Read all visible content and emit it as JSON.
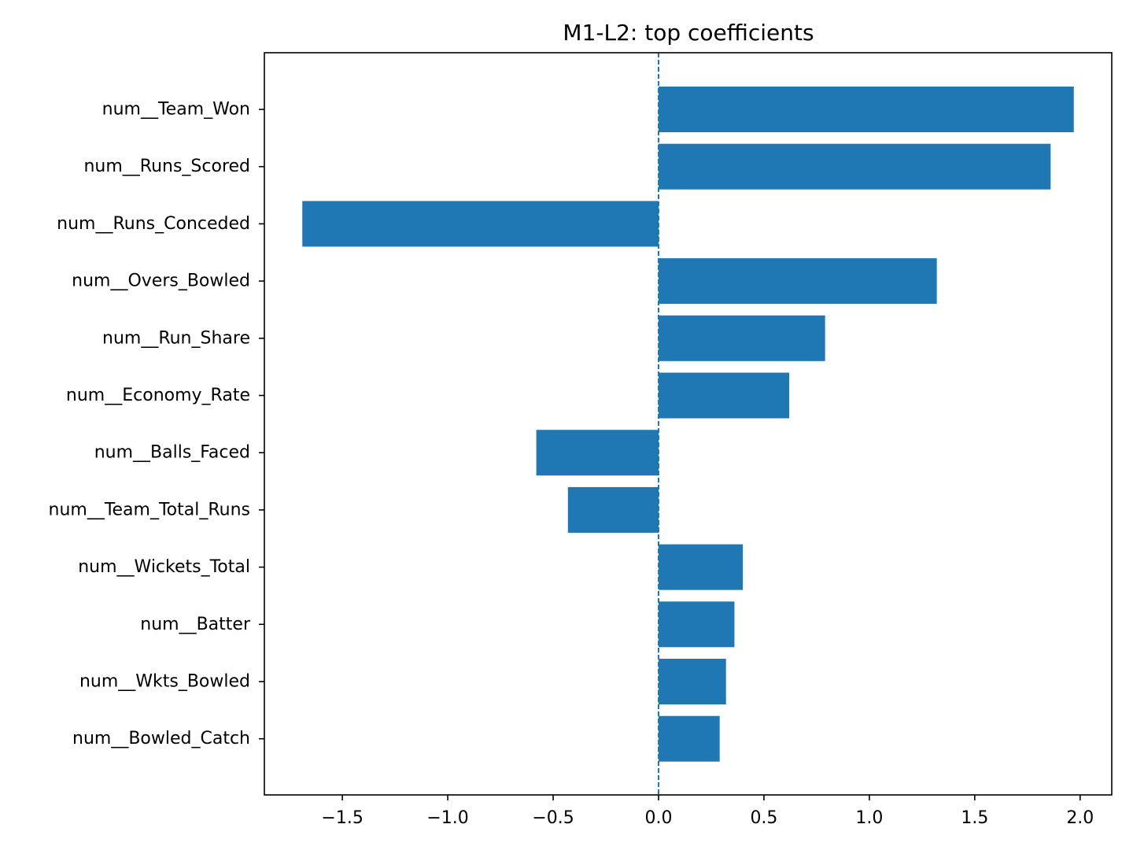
{
  "chart_data": {
    "type": "bar",
    "orientation": "horizontal",
    "title": "M1-L2: top coefficients",
    "xlabel": "",
    "ylabel": "",
    "categories": [
      "num__Team_Won",
      "num__Runs_Scored",
      "num__Runs_Conceded",
      "num__Overs_Bowled",
      "num__Run_Share",
      "num__Economy_Rate",
      "num__Balls_Faced",
      "num__Team_Total_Runs",
      "num__Wickets_Total",
      "num__Batter",
      "num__Wkts_Bowled",
      "num__Bowled_Catch"
    ],
    "values": [
      1.97,
      1.86,
      -1.69,
      1.32,
      0.79,
      0.62,
      -0.58,
      -0.43,
      0.4,
      0.36,
      0.32,
      0.29
    ],
    "xlim": [
      -1.87,
      2.15
    ],
    "xticks": [
      -1.5,
      -1.0,
      -0.5,
      0.0,
      0.5,
      1.0,
      1.5,
      2.0
    ],
    "xtick_labels": [
      "−1.5",
      "−1.0",
      "−0.5",
      "0.0",
      "0.5",
      "1.0",
      "1.5",
      "2.0"
    ],
    "reference_line": {
      "x": 0.0,
      "style": "dashed"
    },
    "bar_color": "#1f77b4",
    "grid": false,
    "legend": "none"
  }
}
